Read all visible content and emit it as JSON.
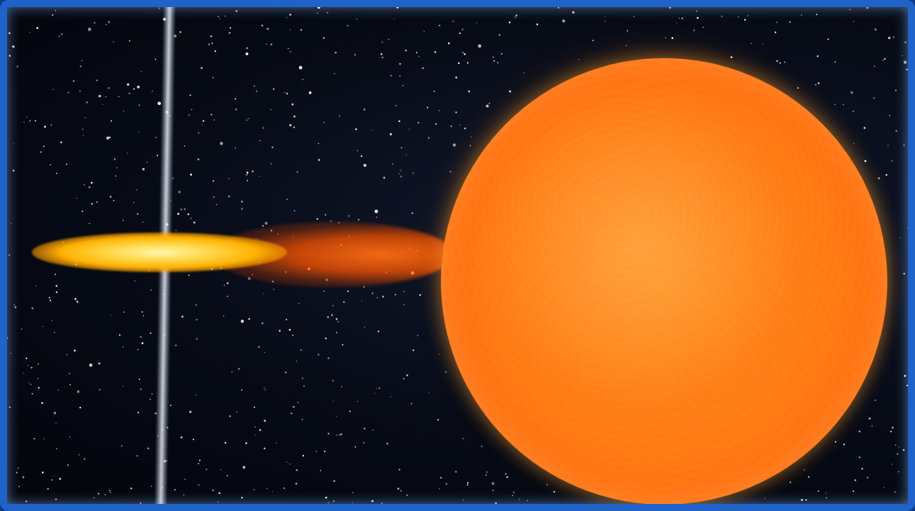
{
  "image": {
    "subject": "",
    "colors": {
      "frame": "#1f63c9",
      "space": "#070b16",
      "star": "#ff7a14",
      "disk_core": "#fff6b0",
      "disk_outer": "#ffb000",
      "jet": "#e6f0ff"
    }
  }
}
